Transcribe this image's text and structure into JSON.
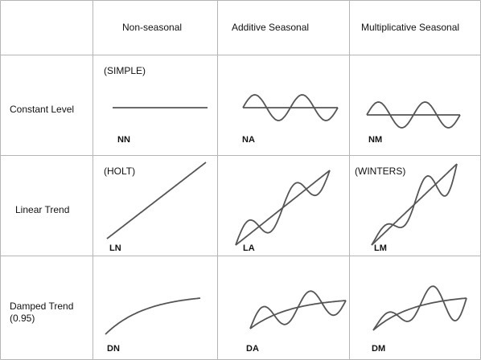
{
  "columns": [
    "Non-seasonal",
    "Additive Seasonal",
    "Multiplicative Seasonal"
  ],
  "rows": [
    {
      "label": "Constant Level"
    },
    {
      "label": "Linear Trend"
    },
    {
      "label_line1": "Damped Trend",
      "label_line2": "(0.95)"
    }
  ],
  "cells": [
    {
      "code": "NN",
      "tag": "(SIMPLE)",
      "trend": "constant",
      "seasonal": "none"
    },
    {
      "code": "NA",
      "trend": "constant",
      "seasonal": "additive"
    },
    {
      "code": "NM",
      "trend": "constant",
      "seasonal": "multiplicative"
    },
    {
      "code": "LN",
      "tag": "(HOLT)",
      "trend": "linear",
      "seasonal": "none"
    },
    {
      "code": "LA",
      "trend": "linear",
      "seasonal": "additive"
    },
    {
      "code": "LM",
      "tag": "(WINTERS)",
      "trend": "linear",
      "seasonal": "multiplicative"
    },
    {
      "code": "DN",
      "trend": "damped",
      "seasonal": "none"
    },
    {
      "code": "DA",
      "trend": "damped",
      "seasonal": "additive"
    },
    {
      "code": "DM",
      "trend": "damped",
      "seasonal": "multiplicative"
    }
  ],
  "colors": {
    "grid": "#b5b5b5",
    "curve": "#555555",
    "text": "#111111"
  }
}
